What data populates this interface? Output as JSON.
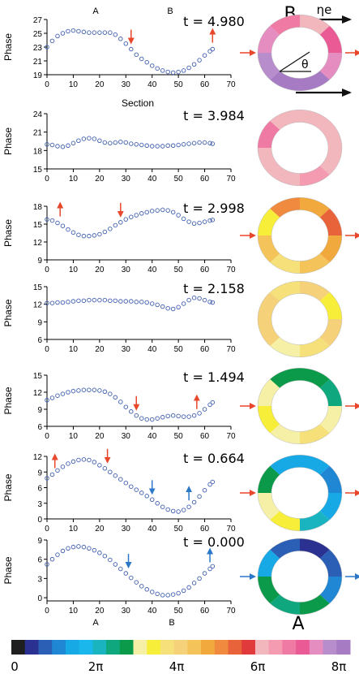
{
  "figure": {
    "top_labels": {
      "a": "A",
      "b": "B"
    },
    "bottom_labels": {
      "a": "A",
      "b": "B"
    },
    "xlabel_first": "Section",
    "ring_top_label": "B",
    "ring_top_eta": "ηe",
    "ring_theta": "θ",
    "ring_bottom_label": "A"
  },
  "colorbar": {
    "colors": [
      "#1f1f1f",
      "#2a3191",
      "#2b5eb5",
      "#1f87d4",
      "#17a8e6",
      "#19b7ec",
      "#19b4c0",
      "#0fa87e",
      "#0b9a4a",
      "#f5f0a6",
      "#f7ee3a",
      "#f5e07a",
      "#f5d27a",
      "#f4c45a",
      "#f1a83c",
      "#ef8a3e",
      "#e9633a",
      "#e03a3c",
      "#f2b6bd",
      "#f49ab1",
      "#ef7aa3",
      "#ea5a94",
      "#e58cc0",
      "#b78ecb",
      "#a77bc4"
    ],
    "tick_labels": [
      "0",
      "2π",
      "4π",
      "6π",
      "8π"
    ],
    "tick_values": [
      0,
      2,
      4,
      6,
      8
    ]
  },
  "chart_data": [
    {
      "type": "scatter",
      "title": "",
      "time_label": "t = 4.980",
      "xlabel": "Section",
      "ylabel": "Phase",
      "xlim": [
        0,
        70
      ],
      "ylim": [
        19,
        27
      ],
      "xticks": [
        0,
        10,
        20,
        30,
        40,
        50,
        60,
        70
      ],
      "yticks": [
        19,
        21,
        23,
        25,
        27
      ],
      "x": [
        0,
        2,
        4,
        6,
        8,
        10,
        12,
        14,
        16,
        18,
        20,
        22,
        24,
        26,
        28,
        30,
        32,
        34,
        36,
        38,
        40,
        42,
        44,
        46,
        48,
        50,
        52,
        54,
        56,
        58,
        60,
        62,
        63
      ],
      "y": [
        23.0,
        23.9,
        24.6,
        25.0,
        25.3,
        25.4,
        25.3,
        25.2,
        25.1,
        25.1,
        25.1,
        25.1,
        25.1,
        24.8,
        24.2,
        23.5,
        22.7,
        21.9,
        21.3,
        20.8,
        20.3,
        19.9,
        19.6,
        19.4,
        19.3,
        19.4,
        19.6,
        20.0,
        20.5,
        21.1,
        21.8,
        22.4,
        22.7
      ],
      "arrows": [
        {
          "x": 32,
          "dir": "down",
          "color": "#e8472b"
        },
        {
          "x": 63,
          "dir": "up",
          "color": "#e8472b"
        }
      ],
      "ring_colors": [
        "#f2b6bd",
        "#ea5a94",
        "#e58cc0",
        "#a77bc4",
        "#a77bc4",
        "#b78ecb",
        "#e58cc0",
        "#ef7aa3"
      ]
    },
    {
      "type": "scatter",
      "title": "",
      "time_label": "t = 3.984",
      "xlabel": "",
      "ylabel": "Phase",
      "xlim": [
        0,
        70
      ],
      "ylim": [
        15,
        24
      ],
      "xticks": [
        0,
        10,
        20,
        30,
        40,
        50,
        60,
        70
      ],
      "yticks": [
        15,
        18,
        21,
        24
      ],
      "x": [
        0,
        2,
        4,
        6,
        8,
        10,
        12,
        14,
        16,
        18,
        20,
        22,
        24,
        26,
        28,
        30,
        32,
        34,
        36,
        38,
        40,
        42,
        44,
        46,
        48,
        50,
        52,
        54,
        56,
        58,
        60,
        62,
        63
      ],
      "y": [
        19.0,
        18.9,
        18.7,
        18.6,
        18.8,
        19.2,
        19.6,
        19.9,
        20.0,
        19.9,
        19.6,
        19.3,
        19.2,
        19.3,
        19.4,
        19.3,
        19.1,
        19.0,
        18.9,
        18.8,
        18.7,
        18.7,
        18.7,
        18.8,
        18.8,
        18.9,
        19.0,
        19.1,
        19.2,
        19.3,
        19.3,
        19.2,
        19.1
      ],
      "arrows": [],
      "ring_colors": [
        "#f2b6bd",
        "#f2b6bd",
        "#f2b6bd",
        "#f49ab1",
        "#f2b6bd",
        "#f2b6bd",
        "#ef7aa3",
        "#f2b6bd"
      ]
    },
    {
      "type": "scatter",
      "title": "",
      "time_label": "t = 2.998",
      "xlabel": "",
      "ylabel": "Phase",
      "xlim": [
        0,
        70
      ],
      "ylim": [
        9,
        18
      ],
      "xticks": [
        0,
        10,
        20,
        30,
        40,
        50,
        60,
        70
      ],
      "yticks": [
        9,
        12,
        15,
        18
      ],
      "x": [
        0,
        2,
        4,
        6,
        8,
        10,
        12,
        14,
        16,
        18,
        20,
        22,
        24,
        26,
        28,
        30,
        32,
        34,
        36,
        38,
        40,
        42,
        44,
        46,
        48,
        50,
        52,
        54,
        56,
        58,
        60,
        62,
        63
      ],
      "y": [
        15.8,
        15.6,
        15.2,
        14.7,
        14.1,
        13.6,
        13.2,
        13.0,
        13.0,
        13.1,
        13.3,
        13.7,
        14.2,
        14.8,
        15.3,
        15.8,
        16.2,
        16.5,
        16.8,
        17.0,
        17.2,
        17.3,
        17.4,
        17.3,
        17.0,
        16.5,
        15.9,
        15.4,
        15.1,
        15.2,
        15.4,
        15.6,
        15.7
      ],
      "arrows": [
        {
          "x": 5,
          "dir": "up",
          "color": "#e8472b"
        },
        {
          "x": 28,
          "dir": "down",
          "color": "#e8472b"
        }
      ],
      "ring_colors": [
        "#f1a83c",
        "#e9633a",
        "#f1a83c",
        "#f4c45a",
        "#f5e07a",
        "#f4c45a",
        "#f7ee3a",
        "#ef8a3e"
      ]
    },
    {
      "type": "scatter",
      "title": "",
      "time_label": "t = 2.158",
      "xlabel": "",
      "ylabel": "Phase",
      "xlim": [
        0,
        70
      ],
      "ylim": [
        6,
        15
      ],
      "xticks": [
        0,
        10,
        20,
        30,
        40,
        50,
        60,
        70
      ],
      "yticks": [
        6,
        9,
        12,
        15
      ],
      "x": [
        0,
        2,
        4,
        6,
        8,
        10,
        12,
        14,
        16,
        18,
        20,
        22,
        24,
        26,
        28,
        30,
        32,
        34,
        36,
        38,
        40,
        42,
        44,
        46,
        48,
        50,
        52,
        54,
        56,
        58,
        60,
        62,
        63
      ],
      "y": [
        12.2,
        12.2,
        12.3,
        12.3,
        12.4,
        12.5,
        12.6,
        12.6,
        12.7,
        12.7,
        12.7,
        12.7,
        12.6,
        12.6,
        12.5,
        12.5,
        12.5,
        12.4,
        12.4,
        12.3,
        12.1,
        11.9,
        11.6,
        11.3,
        11.2,
        11.5,
        12.1,
        12.7,
        13.1,
        13.0,
        12.7,
        12.4,
        12.3
      ],
      "arrows": [],
      "ring_colors": [
        "#f5d27a",
        "#f7ee3a",
        "#f5d27a",
        "#f5e07a",
        "#f5f0a6",
        "#f5d27a",
        "#f5d27a",
        "#f5e07a"
      ]
    },
    {
      "type": "scatter",
      "title": "",
      "time_label": "t = 1.494",
      "xlabel": "",
      "ylabel": "Phase",
      "xlim": [
        0,
        70
      ],
      "ylim": [
        6,
        15
      ],
      "xticks": [
        0,
        10,
        20,
        30,
        40,
        50,
        60,
        70
      ],
      "yticks": [
        6,
        9,
        12,
        15
      ],
      "x": [
        0,
        2,
        4,
        6,
        8,
        10,
        12,
        14,
        16,
        18,
        20,
        22,
        24,
        26,
        28,
        30,
        32,
        34,
        36,
        38,
        40,
        42,
        44,
        46,
        48,
        50,
        52,
        54,
        56,
        58,
        60,
        62,
        63
      ],
      "y": [
        10.6,
        11.0,
        11.4,
        11.7,
        12.0,
        12.2,
        12.3,
        12.4,
        12.4,
        12.4,
        12.3,
        12.1,
        11.7,
        11.1,
        10.3,
        9.4,
        8.6,
        7.9,
        7.4,
        7.2,
        7.2,
        7.4,
        7.6,
        7.8,
        7.9,
        7.8,
        7.7,
        7.7,
        7.9,
        8.3,
        9.0,
        9.8,
        10.2
      ],
      "arrows": [
        {
          "x": 34,
          "dir": "down",
          "color": "#e8472b"
        },
        {
          "x": 57,
          "dir": "up",
          "color": "#e8472b"
        }
      ],
      "ring_colors": [
        "#0b9a4a",
        "#0fa87e",
        "#f5f0a6",
        "#f5e07a",
        "#f5f0a6",
        "#f7ee3a",
        "#f5f0a6",
        "#0b9a4a"
      ]
    },
    {
      "type": "scatter",
      "title": "",
      "time_label": "t = 0.664",
      "xlabel": "",
      "ylabel": "Phase",
      "xlim": [
        0,
        70
      ],
      "ylim": [
        0,
        12
      ],
      "xticks": [
        0,
        10,
        20,
        30,
        40,
        50,
        60,
        70
      ],
      "yticks": [
        0,
        3,
        6,
        9,
        12
      ],
      "x": [
        0,
        2,
        4,
        6,
        8,
        10,
        12,
        14,
        16,
        18,
        20,
        22,
        24,
        26,
        28,
        30,
        32,
        34,
        36,
        38,
        40,
        42,
        44,
        46,
        48,
        50,
        52,
        54,
        56,
        58,
        60,
        62,
        63
      ],
      "y": [
        7.8,
        8.5,
        9.3,
        10.0,
        10.6,
        11.0,
        11.3,
        11.4,
        11.3,
        10.9,
        10.3,
        9.7,
        9.0,
        8.3,
        7.6,
        6.9,
        6.2,
        5.6,
        5.0,
        4.4,
        3.7,
        3.0,
        2.3,
        1.8,
        1.5,
        1.4,
        1.7,
        2.3,
        3.2,
        4.3,
        5.5,
        6.6,
        7.1
      ],
      "arrows": [
        {
          "x": 3,
          "dir": "up",
          "color": "#e8472b"
        },
        {
          "x": 23,
          "dir": "down",
          "color": "#e8472b"
        },
        {
          "x": 40,
          "dir": "down",
          "color": "#2b78c9"
        },
        {
          "x": 54,
          "dir": "up",
          "color": "#2b78c9"
        }
      ],
      "ring_colors": [
        "#17a8e6",
        "#1f87d4",
        "#17a8e6",
        "#19b4c0",
        "#f7ee3a",
        "#f5f0a6",
        "#0b9a4a",
        "#17a8e6"
      ]
    },
    {
      "type": "scatter",
      "title": "",
      "time_label": "t = 0.000",
      "xlabel": "",
      "ylabel": "Phase",
      "xlim": [
        0,
        70
      ],
      "ylim": [
        -0.5,
        9
      ],
      "xticks": [
        0,
        10,
        20,
        30,
        40,
        50,
        60,
        70
      ],
      "yticks": [
        0,
        3,
        6,
        9
      ],
      "x": [
        0,
        2,
        4,
        6,
        8,
        10,
        12,
        14,
        16,
        18,
        20,
        22,
        24,
        26,
        28,
        30,
        32,
        34,
        36,
        38,
        40,
        42,
        44,
        46,
        48,
        50,
        52,
        54,
        56,
        58,
        60,
        62,
        63
      ],
      "y": [
        5.2,
        6.0,
        6.7,
        7.3,
        7.7,
        7.9,
        8.0,
        7.9,
        7.7,
        7.4,
        7.0,
        6.5,
        5.9,
        5.2,
        4.5,
        3.8,
        3.1,
        2.4,
        1.8,
        1.3,
        0.9,
        0.6,
        0.4,
        0.4,
        0.5,
        0.7,
        1.1,
        1.6,
        2.3,
        3.0,
        3.8,
        4.5,
        4.9
      ],
      "arrows": [
        {
          "x": 31,
          "dir": "down",
          "color": "#2b78c9"
        },
        {
          "x": 62,
          "dir": "up",
          "color": "#2b78c9"
        }
      ],
      "ring_colors": [
        "#2a3191",
        "#2b5eb5",
        "#1f87d4",
        "#0b9a4a",
        "#0fa87e",
        "#0b9a4a",
        "#17a8e6",
        "#2b5eb5"
      ]
    }
  ]
}
